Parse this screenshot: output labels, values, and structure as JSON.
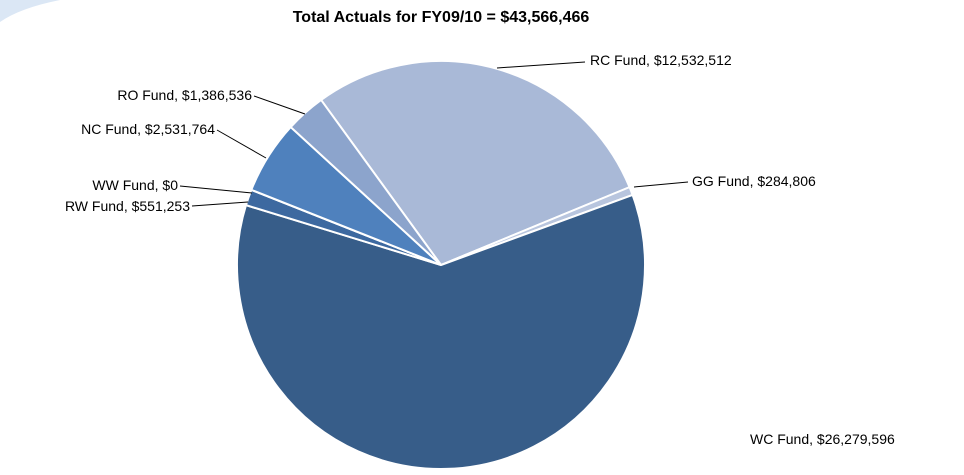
{
  "chart_data": {
    "type": "pie",
    "title": "Total Actuals for FY09/10 = $43,566,466",
    "categories": [
      "RC Fund",
      "GG Fund",
      "WC Fund",
      "RW Fund",
      "WW Fund",
      "NC Fund",
      "RO Fund"
    ],
    "values": [
      12532512,
      284806,
      26279596,
      551253,
      0,
      2531764,
      1386536
    ],
    "value_labels": [
      "$12,532,512",
      "$284,806",
      "$26,279,596",
      "$551,253",
      "$0",
      "$2,531,764",
      "$1,386,536"
    ],
    "label_separator": ", ",
    "colors": [
      "#a9b9d7",
      "#b8c5de",
      "#375d89",
      "#3d69a0",
      "#4575b0",
      "#4f81bd",
      "#8ca4cc"
    ]
  }
}
